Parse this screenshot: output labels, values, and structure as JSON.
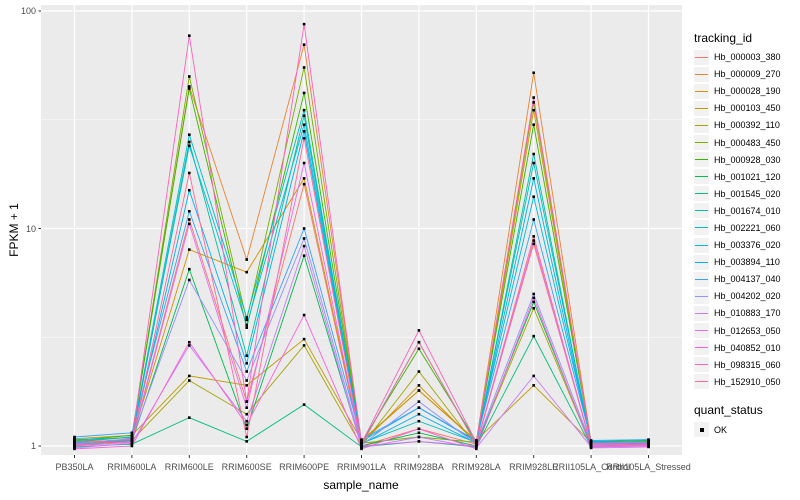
{
  "chart_data": {
    "type": "line",
    "title": "",
    "xlabel": "sample_name",
    "ylabel": "FPKM + 1",
    "y_scale": "log10",
    "y_ticks": [
      "1",
      "10",
      "100"
    ],
    "y_minor_gridlines": [
      3.1623,
      31.623
    ],
    "ylim": [
      0.91,
      107
    ],
    "grid": true,
    "legend_position": "right",
    "point_shape": "small-black-square",
    "categories": [
      "PB350LA",
      "RRIM600LA",
      "RRIM600LE",
      "RRIM600SE",
      "RRIM600PE",
      "RRIM901LA",
      "RRIM928BA",
      "RRIM928LA",
      "RRIM928LE",
      "RRII105LA_Control",
      "RRII105LA_Stressed"
    ],
    "series": [
      {
        "name": "Hb_000003_380",
        "color": "#F8766D",
        "values": [
          1.02,
          1.05,
          11,
          1.6,
          16,
          1.0,
          1.2,
          1.02,
          8.5,
          1.02,
          1.03
        ]
      },
      {
        "name": "Hb_000009_270",
        "color": "#EA8331",
        "values": [
          1.05,
          1.1,
          45,
          7.2,
          70,
          1.05,
          1.8,
          1.05,
          52,
          1.05,
          1.04
        ]
      },
      {
        "name": "Hb_000028_190",
        "color": "#D89000",
        "values": [
          1.03,
          1.08,
          8.0,
          6.3,
          17,
          1.02,
          1.9,
          1.03,
          35,
          1.03,
          1.02
        ]
      },
      {
        "name": "Hb_000103_450",
        "color": "#C09B00",
        "values": [
          1.08,
          1.12,
          2.1,
          1.9,
          3.1,
          1.06,
          1.8,
          1.06,
          1.9,
          1.04,
          1.05
        ]
      },
      {
        "name": "Hb_000392_110",
        "color": "#A3A500",
        "values": [
          1.0,
          1.06,
          2.0,
          1.4,
          2.9,
          1.0,
          2.2,
          1.0,
          4.3,
          1.0,
          1.01
        ]
      },
      {
        "name": "Hb_000483_450",
        "color": "#7CAE00",
        "values": [
          1.04,
          1.1,
          50,
          3.8,
          55,
          1.03,
          1.1,
          1.04,
          38,
          1.04,
          1.03
        ]
      },
      {
        "name": "Hb_000928_030",
        "color": "#39B600",
        "values": [
          1.06,
          1.12,
          44,
          3.5,
          42,
          1.04,
          2.8,
          1.05,
          30,
          1.05,
          1.06
        ]
      },
      {
        "name": "Hb_001021_120",
        "color": "#00BB4E",
        "values": [
          1.01,
          1.05,
          6.5,
          1.2,
          7.5,
          1.0,
          1.15,
          1.0,
          4.6,
          1.0,
          1.02
        ]
      },
      {
        "name": "Hb_001545_020",
        "color": "#00BF7D",
        "values": [
          0.99,
          1.02,
          1.35,
          1.05,
          1.55,
          0.99,
          1.05,
          0.99,
          3.2,
          0.99,
          1.0
        ]
      },
      {
        "name": "Hb_001674_010",
        "color": "#00C1A3",
        "values": [
          1.02,
          1.07,
          25,
          2.6,
          33,
          1.02,
          3.0,
          1.02,
          22,
          1.02,
          1.02
        ]
      },
      {
        "name": "Hb_002221_060",
        "color": "#00BFC4",
        "values": [
          1.05,
          1.1,
          27,
          3.9,
          35,
          1.03,
          1.3,
          1.04,
          20,
          1.04,
          1.05
        ]
      },
      {
        "name": "Hb_003376_020",
        "color": "#00BAE0",
        "values": [
          1.07,
          1.09,
          24,
          3.6,
          30,
          1.05,
          1.5,
          1.05,
          14,
          1.05,
          1.04
        ]
      },
      {
        "name": "Hb_003894_110",
        "color": "#00B0F6",
        "values": [
          1.03,
          1.06,
          15,
          2.4,
          28,
          1.02,
          1.4,
          1.03,
          17,
          1.03,
          1.03
        ]
      },
      {
        "name": "Hb_004137_040",
        "color": "#35A2FF",
        "values": [
          1.1,
          1.15,
          12,
          2.2,
          10,
          1.07,
          1.5,
          1.06,
          11,
          1.06,
          1.07
        ]
      },
      {
        "name": "Hb_004202_020",
        "color": "#9590FF",
        "values": [
          1.02,
          1.08,
          5.8,
          2.0,
          9.0,
          1.01,
          1.6,
          1.02,
          5.0,
          1.02,
          1.02
        ]
      },
      {
        "name": "Hb_010883_170",
        "color": "#C77CFF",
        "values": [
          0.98,
          1.03,
          2.9,
          1.3,
          8.3,
          0.98,
          1.1,
          0.98,
          2.1,
          0.99,
          1.0
        ]
      },
      {
        "name": "Hb_012653_050",
        "color": "#E76BF3",
        "values": [
          1.0,
          1.04,
          10.5,
          1.5,
          20,
          1.0,
          1.05,
          1.0,
          8.8,
          1.0,
          1.01
        ]
      },
      {
        "name": "Hb_040852_010",
        "color": "#FA62DB",
        "values": [
          0.97,
          1.0,
          3.0,
          1.25,
          4.0,
          0.97,
          1.2,
          0.97,
          4.8,
          0.98,
          0.99
        ]
      },
      {
        "name": "Hb_098315_060",
        "color": "#FF62BC",
        "values": [
          1.04,
          1.07,
          77,
          1.6,
          87,
          1.03,
          3.4,
          1.04,
          40,
          1.03,
          1.04
        ]
      },
      {
        "name": "Hb_152910_050",
        "color": "#FF6A98",
        "values": [
          1.01,
          1.05,
          18,
          1.1,
          26,
          1.01,
          3.0,
          1.01,
          9.2,
          1.01,
          1.02
        ]
      }
    ]
  },
  "legend": {
    "tracking_title": "tracking_id",
    "quant_title": "quant_status",
    "quant_items": [
      {
        "label": "OK",
        "marker_color": "#000000"
      }
    ]
  },
  "colors": {
    "panel_bg": "#EBEBEB",
    "gridline": "#FFFFFF",
    "legend_key_bg": "#F2F2F2",
    "tick_label": "#4D4D4D",
    "axis_title": "#000000",
    "point": "#000000",
    "tick_mark": "#333333"
  }
}
